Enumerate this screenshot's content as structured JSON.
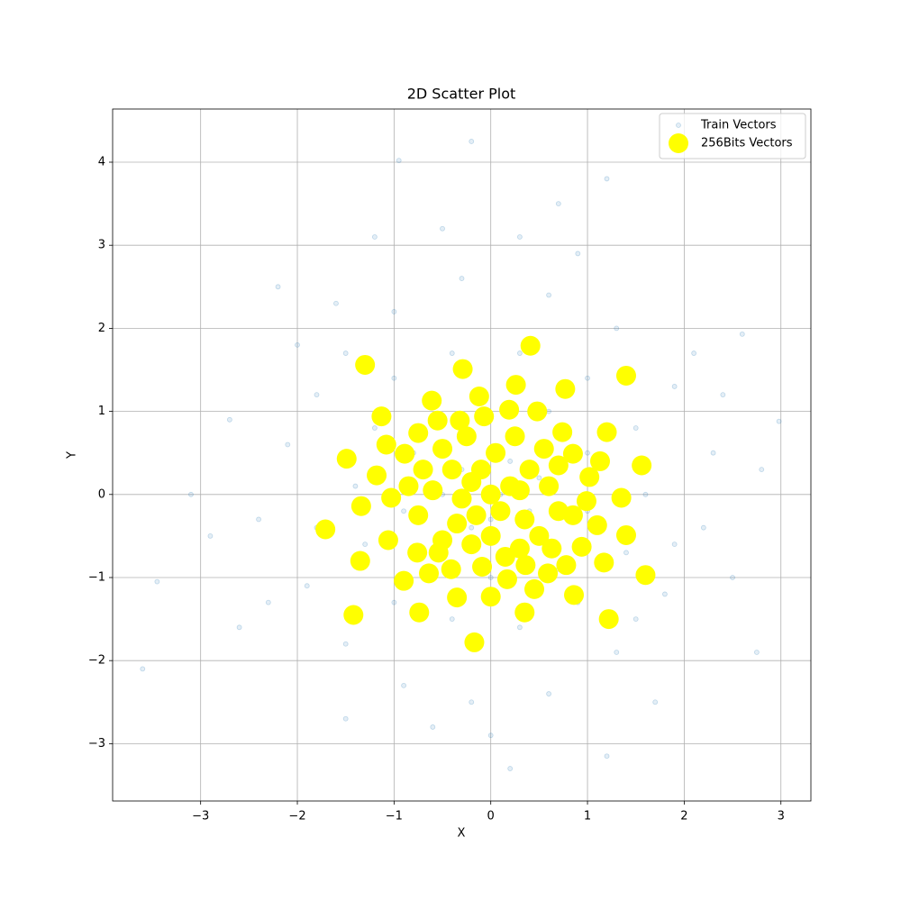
{
  "chart_data": {
    "type": "scatter",
    "title": "2D Scatter Plot",
    "x_label": "X",
    "y_label": "Y",
    "xlim": [
      -3.91,
      3.31
    ],
    "ylim": [
      -3.69,
      4.64
    ],
    "xticks": [
      {
        "value": -3,
        "label": "−3"
      },
      {
        "value": -2,
        "label": "−2"
      },
      {
        "value": -1,
        "label": "−1"
      },
      0,
      1,
      2,
      3
    ],
    "yticks": [
      {
        "value": -3,
        "label": "−3"
      },
      {
        "value": -2,
        "label": "−2"
      },
      {
        "value": -1,
        "label": "−1"
      },
      0,
      1,
      2,
      3,
      4
    ],
    "grid": true,
    "legend": "upper right",
    "series": [
      {
        "name": "Train Vectors",
        "color": "#1f77b4",
        "marker": "small",
        "x": [
          -3.6,
          2.98,
          -0.2,
          -0.95,
          0.2,
          -3.45,
          2.6,
          2.75,
          1.2,
          -2.2,
          -1.8,
          -2.1,
          -2.4,
          -1.9,
          -1.5,
          -0.9,
          -0.2,
          0.6,
          1.3,
          1.8,
          2.2,
          2.3,
          1.9,
          1.3,
          0.6,
          -0.3,
          -1.0,
          -1.5,
          -1.2,
          -1.4,
          -1.3,
          -1.0,
          -0.4,
          0.3,
          0.9,
          1.4,
          1.6,
          1.5,
          1.0,
          0.3,
          -0.4,
          -1.0,
          -0.8,
          -0.9,
          -0.6,
          0.0,
          0.7,
          1.0,
          1.0,
          0.6,
          -0.1,
          -0.6,
          -0.3,
          0.2,
          0.4,
          -0.2,
          0.1,
          -0.5,
          0.5,
          0.0,
          -2.7,
          -2.9,
          2.5,
          2.4,
          -0.5,
          0.7,
          1.2,
          -1.2,
          0.0,
          -1.5,
          1.7,
          -2.6,
          -3.1,
          2.8,
          -0.6,
          0.9,
          -1.8,
          1.9,
          -2.0,
          2.1,
          0.3,
          -2.3,
          1.5,
          -1.6
        ],
        "values": [
          -2.1,
          0.88,
          4.25,
          4.02,
          -3.3,
          -1.05,
          1.93,
          -1.9,
          -3.15,
          2.5,
          1.2,
          0.6,
          -0.3,
          -1.1,
          -1.8,
          -2.3,
          -2.5,
          -2.4,
          -1.9,
          -1.2,
          -0.4,
          0.5,
          1.3,
          2.0,
          2.4,
          2.6,
          2.2,
          1.7,
          0.8,
          0.1,
          -0.6,
          -1.3,
          -1.5,
          -1.6,
          -1.3,
          -0.7,
          0.0,
          0.8,
          1.4,
          1.7,
          1.7,
          1.4,
          0.5,
          -0.2,
          -0.9,
          -1.0,
          -0.9,
          -0.2,
          0.5,
          1.0,
          1.1,
          0.9,
          0.3,
          0.4,
          -0.2,
          -0.4,
          0.0,
          0.0,
          0.2,
          -0.3,
          0.9,
          -0.5,
          -1.0,
          1.2,
          3.2,
          3.5,
          3.8,
          3.1,
          -2.9,
          -2.7,
          -2.5,
          -1.6,
          0.0,
          0.3,
          -2.8,
          2.9,
          -0.4,
          -0.6,
          1.8,
          1.7,
          3.1,
          -1.3,
          -1.5,
          2.3
        ]
      },
      {
        "name": "256Bits Vectors",
        "color": "#ffff00",
        "marker": "large",
        "x": [
          -1.3,
          -0.29,
          0.41,
          1.4,
          0.26,
          0.77,
          -0.12,
          -0.61,
          -1.13,
          -0.55,
          -0.32,
          -0.07,
          0.19,
          0.48,
          1.2,
          -1.49,
          -1.08,
          -0.89,
          -1.18,
          -0.75,
          1.13,
          1.56,
          1.02,
          0.85,
          0.74,
          -1.03,
          -1.34,
          1.35,
          0.99,
          -1.71,
          -1.06,
          1.1,
          0.85,
          1.4,
          -0.76,
          -1.35,
          0.94,
          0.63,
          1.17,
          1.6,
          0.78,
          -0.9,
          -0.64,
          -0.41,
          0.59,
          0.36,
          0.17,
          -0.35,
          0.0,
          0.45,
          0.86,
          -1.42,
          -0.74,
          0.35,
          1.22,
          -0.17,
          -0.09,
          -0.54,
          0.0,
          0.2,
          -0.2,
          0.1,
          -0.15,
          0.4,
          -0.4,
          0.35,
          -0.35,
          0.6,
          -0.6,
          0.05,
          0.0,
          0.5,
          -0.5,
          0.55,
          -0.5,
          0.25,
          -0.25,
          0.7,
          -0.75,
          0.15,
          -0.2,
          0.7,
          -0.7,
          -0.85,
          0.3,
          -0.1,
          0.3,
          -0.3
        ],
        "values": [
          1.56,
          1.51,
          1.79,
          1.43,
          1.32,
          1.27,
          1.18,
          1.13,
          0.94,
          0.89,
          0.89,
          0.94,
          1.02,
          1.0,
          0.75,
          0.43,
          0.6,
          0.49,
          0.23,
          0.74,
          0.4,
          0.35,
          0.21,
          0.49,
          0.75,
          -0.04,
          -0.14,
          -0.04,
          -0.08,
          -0.42,
          -0.55,
          -0.37,
          -0.25,
          -0.49,
          -0.7,
          -0.8,
          -0.63,
          -0.65,
          -0.82,
          -0.97,
          -0.85,
          -1.04,
          -0.95,
          -0.9,
          -0.95,
          -0.85,
          -1.02,
          -1.24,
          -1.23,
          -1.14,
          -1.21,
          -1.45,
          -1.42,
          -1.42,
          -1.5,
          -1.78,
          -0.87,
          -0.7,
          0.0,
          0.1,
          0.15,
          -0.2,
          -0.25,
          0.3,
          0.3,
          -0.3,
          -0.35,
          0.1,
          0.05,
          0.5,
          -0.5,
          -0.5,
          -0.55,
          0.55,
          0.55,
          0.7,
          0.7,
          -0.2,
          -0.25,
          -0.75,
          -0.6,
          0.35,
          0.3,
          0.1,
          -0.65,
          0.3,
          0.05,
          -0.05
        ]
      }
    ]
  }
}
